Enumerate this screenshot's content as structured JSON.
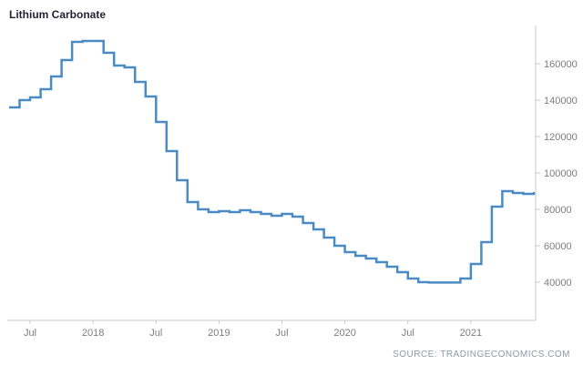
{
  "header": {
    "title": "Lithium Carbonate"
  },
  "footer": {
    "source": "SOURCE: TRADINGECONOMICS.COM"
  },
  "chart_data": {
    "type": "line",
    "style": "step",
    "title": "Lithium Carbonate",
    "xlabel": "",
    "ylabel": "",
    "grid": false,
    "legend_position": "none",
    "x": [
      "2017-05",
      "2017-06",
      "2017-07",
      "2017-08",
      "2017-09",
      "2017-10",
      "2017-11",
      "2017-12",
      "2018-01",
      "2018-02",
      "2018-03",
      "2018-04",
      "2018-05",
      "2018-06",
      "2018-07",
      "2018-08",
      "2018-09",
      "2018-10",
      "2018-11",
      "2018-12",
      "2019-01",
      "2019-02",
      "2019-03",
      "2019-04",
      "2019-05",
      "2019-06",
      "2019-07",
      "2019-08",
      "2019-09",
      "2019-10",
      "2019-11",
      "2019-12",
      "2020-01",
      "2020-02",
      "2020-03",
      "2020-04",
      "2020-05",
      "2020-06",
      "2020-07",
      "2020-08",
      "2020-09",
      "2020-10",
      "2020-11",
      "2020-12",
      "2021-01",
      "2021-02",
      "2021-03",
      "2021-04",
      "2021-05",
      "2021-06",
      "2021-07"
    ],
    "values": [
      136000,
      140000,
      141500,
      146000,
      153000,
      162000,
      172000,
      172500,
      172500,
      166000,
      159000,
      158000,
      150000,
      142000,
      128000,
      112000,
      96000,
      84000,
      80000,
      78500,
      79000,
      78500,
      79500,
      78500,
      77500,
      76500,
      77500,
      76000,
      72500,
      69000,
      64500,
      60000,
      56500,
      54500,
      53000,
      51000,
      48500,
      45500,
      42000,
      40000,
      39800,
      39800,
      39800,
      42000,
      50000,
      62000,
      81500,
      90000,
      89000,
      88500,
      89500
    ],
    "x_tick_labels": [
      {
        "label": "Jul",
        "index": 2
      },
      {
        "label": "2018",
        "index": 8
      },
      {
        "label": "Jul",
        "index": 14
      },
      {
        "label": "2019",
        "index": 20
      },
      {
        "label": "Jul",
        "index": 26
      },
      {
        "label": "2020",
        "index": 32
      },
      {
        "label": "Jul",
        "index": 38
      },
      {
        "label": "2021",
        "index": 44
      }
    ],
    "y_ticks": [
      40000,
      60000,
      80000,
      100000,
      120000,
      140000,
      160000
    ],
    "ylim": [
      19000,
      181000
    ],
    "line_color": "#4a8bc4",
    "axis_color": "#c9c9c9",
    "tick_label_color": "#7d7d7d",
    "title_color": "#1f2430",
    "source_color": "#8a99a8",
    "background_color": "#ffffff"
  }
}
